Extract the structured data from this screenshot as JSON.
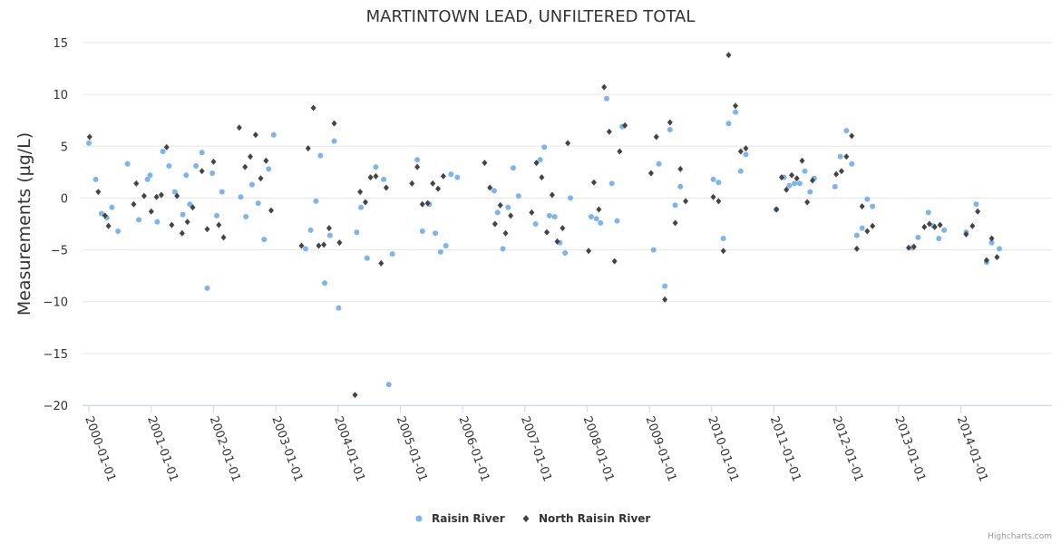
{
  "chart_data": {
    "type": "scatter",
    "title": "MARTINTOWN LEAD, UNFILTERED TOTAL",
    "xlabel": "",
    "ylabel": "Measurements (µg/L)",
    "ylim": [
      -20,
      15
    ],
    "yticks": [
      -20,
      -15,
      -10,
      -5,
      0,
      5,
      10,
      15
    ],
    "xlim": [
      "2000-01-01",
      "2014-12-31"
    ],
    "xticks": [
      "2000-01-01",
      "2001-01-01",
      "2002-01-01",
      "2003-01-01",
      "2004-01-01",
      "2005-01-01",
      "2006-01-01",
      "2007-01-01",
      "2008-01-01",
      "2009-01-01",
      "2010-01-01",
      "2011-01-01",
      "2012-01-01",
      "2013-01-01",
      "2014-01-01"
    ],
    "grid": true,
    "legend": "bottom-center",
    "credit": "Highcharts.com",
    "series": [
      {
        "name": "Raisin River",
        "color": "#7cb5ec",
        "marker": "circle",
        "points": [
          [
            "2000-01-01",
            5.3
          ],
          [
            "2000-02-10",
            1.8
          ],
          [
            "2000-03-15",
            -1.5
          ],
          [
            "2000-04-15",
            -1.9
          ],
          [
            "2000-05-15",
            -0.9
          ],
          [
            "2000-06-20",
            -3.2
          ],
          [
            "2000-08-15",
            3.3
          ],
          [
            "2000-10-20",
            -2.1
          ],
          [
            "2000-12-10",
            1.8
          ],
          [
            "2000-12-25",
            2.2
          ],
          [
            "2001-02-05",
            -2.3
          ],
          [
            "2001-03-10",
            4.5
          ],
          [
            "2001-04-15",
            3.1
          ],
          [
            "2001-05-20",
            0.6
          ],
          [
            "2001-07-05",
            -1.6
          ],
          [
            "2001-07-25",
            2.2
          ],
          [
            "2001-08-15",
            -0.6
          ],
          [
            "2001-09-20",
            3.1
          ],
          [
            "2001-10-25",
            4.4
          ],
          [
            "2001-11-25",
            -8.7
          ],
          [
            "2001-12-25",
            2.4
          ],
          [
            "2002-01-20",
            -1.7
          ],
          [
            "2002-02-20",
            0.6
          ],
          [
            "2002-06-10",
            0.1
          ],
          [
            "2002-07-10",
            -1.8
          ],
          [
            "2002-08-15",
            1.3
          ],
          [
            "2002-09-20",
            -0.5
          ],
          [
            "2002-10-25",
            -4.0
          ],
          [
            "2002-11-20",
            2.8
          ],
          [
            "2002-12-20",
            6.1
          ],
          [
            "2003-06-25",
            -4.9
          ],
          [
            "2003-07-25",
            -3.1
          ],
          [
            "2003-08-25",
            -0.3
          ],
          [
            "2003-09-20",
            4.1
          ],
          [
            "2003-10-15",
            -8.2
          ],
          [
            "2003-11-15",
            -3.6
          ],
          [
            "2003-12-10",
            5.5
          ],
          [
            "2004-01-05",
            -10.6
          ],
          [
            "2004-04-20",
            -3.3
          ],
          [
            "2004-05-15",
            -0.9
          ],
          [
            "2004-06-20",
            -5.8
          ],
          [
            "2004-08-10",
            3.0
          ],
          [
            "2004-09-25",
            1.8
          ],
          [
            "2004-10-25",
            -18.0
          ],
          [
            "2004-11-15",
            -5.4
          ],
          [
            "2005-04-10",
            3.7
          ],
          [
            "2005-05-10",
            -3.2
          ],
          [
            "2005-06-20",
            -0.6
          ],
          [
            "2005-07-25",
            -3.4
          ],
          [
            "2005-08-25",
            -5.2
          ],
          [
            "2005-09-25",
            -4.6
          ],
          [
            "2005-10-25",
            2.3
          ],
          [
            "2005-12-01",
            2.0
          ],
          [
            "2006-07-05",
            0.7
          ],
          [
            "2006-07-25",
            -1.4
          ],
          [
            "2006-08-25",
            -4.9
          ],
          [
            "2006-09-25",
            -0.9
          ],
          [
            "2006-10-25",
            2.9
          ],
          [
            "2006-11-25",
            0.2
          ],
          [
            "2007-03-05",
            -2.5
          ],
          [
            "2007-04-01",
            3.7
          ],
          [
            "2007-04-25",
            4.9
          ],
          [
            "2007-05-25",
            -1.7
          ],
          [
            "2007-06-25",
            -1.8
          ],
          [
            "2007-07-25",
            -4.3
          ],
          [
            "2007-08-25",
            -5.3
          ],
          [
            "2007-09-25",
            0.0
          ],
          [
            "2008-01-25",
            -1.8
          ],
          [
            "2008-02-25",
            -2.0
          ],
          [
            "2008-03-20",
            -2.4
          ],
          [
            "2008-04-25",
            9.6
          ],
          [
            "2008-05-25",
            1.4
          ],
          [
            "2008-06-25",
            -2.2
          ],
          [
            "2008-07-25",
            6.9
          ],
          [
            "2009-01-25",
            -5.0
          ],
          [
            "2009-02-25",
            3.3
          ],
          [
            "2009-04-01",
            -8.5
          ],
          [
            "2009-05-01",
            6.6
          ],
          [
            "2009-06-01",
            -0.7
          ],
          [
            "2009-07-01",
            1.1
          ],
          [
            "2010-01-10",
            1.8
          ],
          [
            "2010-02-10",
            1.5
          ],
          [
            "2010-03-10",
            -3.9
          ],
          [
            "2010-04-10",
            7.2
          ],
          [
            "2010-05-20",
            8.3
          ],
          [
            "2010-06-20",
            2.6
          ],
          [
            "2010-07-20",
            4.2
          ],
          [
            "2011-01-15",
            -1.1
          ],
          [
            "2011-03-01",
            2.0
          ],
          [
            "2011-04-01",
            1.2
          ],
          [
            "2011-05-01",
            1.4
          ],
          [
            "2011-06-01",
            1.4
          ],
          [
            "2011-07-01",
            2.6
          ],
          [
            "2011-08-01",
            0.6
          ],
          [
            "2011-08-25",
            1.9
          ],
          [
            "2011-12-25",
            1.1
          ],
          [
            "2012-01-25",
            4.0
          ],
          [
            "2012-03-01",
            6.5
          ],
          [
            "2012-04-01",
            3.3
          ],
          [
            "2012-05-01",
            -3.6
          ],
          [
            "2012-06-01",
            -2.9
          ],
          [
            "2012-07-01",
            -0.1
          ],
          [
            "2012-08-01",
            -0.8
          ],
          [
            "2013-03-25",
            -4.8
          ],
          [
            "2013-04-25",
            -3.8
          ],
          [
            "2013-06-25",
            -1.4
          ],
          [
            "2013-07-25",
            -2.7
          ],
          [
            "2013-08-25",
            -3.9
          ],
          [
            "2013-09-25",
            -3.1
          ],
          [
            "2014-02-01",
            -3.3
          ],
          [
            "2014-04-01",
            -0.6
          ],
          [
            "2014-06-01",
            -6.2
          ],
          [
            "2014-07-01",
            -4.3
          ],
          [
            "2014-08-15",
            -4.9
          ]
        ]
      },
      {
        "name": "North Raisin River",
        "color": "#434348",
        "marker": "diamond",
        "points": [
          [
            "2000-01-05",
            5.9
          ],
          [
            "2000-02-25",
            0.6
          ],
          [
            "2000-04-05",
            -1.7
          ],
          [
            "2000-04-25",
            -2.7
          ],
          [
            "2000-09-20",
            -0.6
          ],
          [
            "2000-10-05",
            1.4
          ],
          [
            "2000-11-20",
            0.2
          ],
          [
            "2001-01-01",
            -1.3
          ],
          [
            "2001-02-01",
            0.1
          ],
          [
            "2001-03-01",
            0.3
          ],
          [
            "2001-04-01",
            4.9
          ],
          [
            "2001-05-01",
            -2.6
          ],
          [
            "2001-06-01",
            0.2
          ],
          [
            "2001-07-01",
            -3.4
          ],
          [
            "2001-08-01",
            -2.3
          ],
          [
            "2001-09-01",
            -0.9
          ],
          [
            "2001-10-25",
            2.6
          ],
          [
            "2001-11-25",
            -3.0
          ],
          [
            "2002-01-01",
            3.5
          ],
          [
            "2002-02-01",
            -2.6
          ],
          [
            "2002-03-01",
            -3.8
          ],
          [
            "2002-06-01",
            6.8
          ],
          [
            "2002-07-05",
            3.0
          ],
          [
            "2002-08-05",
            4.0
          ],
          [
            "2002-09-05",
            6.1
          ],
          [
            "2002-10-05",
            1.9
          ],
          [
            "2002-11-05",
            3.6
          ],
          [
            "2002-12-05",
            -1.2
          ],
          [
            "2003-06-01",
            -4.6
          ],
          [
            "2003-07-10",
            4.8
          ],
          [
            "2003-08-10",
            8.7
          ],
          [
            "2003-09-10",
            -4.6
          ],
          [
            "2003-10-10",
            -4.5
          ],
          [
            "2003-11-10",
            -2.9
          ],
          [
            "2003-12-10",
            7.2
          ],
          [
            "2004-01-10",
            -4.3
          ],
          [
            "2004-04-10",
            -19.0
          ],
          [
            "2004-05-10",
            0.6
          ],
          [
            "2004-06-10",
            -0.4
          ],
          [
            "2004-07-10",
            2.0
          ],
          [
            "2004-08-10",
            2.1
          ],
          [
            "2004-09-10",
            -6.3
          ],
          [
            "2004-10-10",
            1.0
          ],
          [
            "2005-03-10",
            1.4
          ],
          [
            "2005-04-10",
            3.0
          ],
          [
            "2005-05-10",
            -0.6
          ],
          [
            "2005-06-10",
            -0.5
          ],
          [
            "2005-07-10",
            1.4
          ],
          [
            "2005-08-10",
            0.9
          ],
          [
            "2005-09-10",
            2.1
          ],
          [
            "2006-05-10",
            3.4
          ],
          [
            "2006-06-10",
            1.0
          ],
          [
            "2006-07-10",
            -2.5
          ],
          [
            "2006-08-10",
            -0.7
          ],
          [
            "2006-09-10",
            -3.4
          ],
          [
            "2006-10-10",
            -1.7
          ],
          [
            "2007-02-10",
            -1.4
          ],
          [
            "2007-03-10",
            3.4
          ],
          [
            "2007-04-10",
            2.0
          ],
          [
            "2007-05-10",
            -3.3
          ],
          [
            "2007-06-10",
            0.3
          ],
          [
            "2007-07-10",
            -4.2
          ],
          [
            "2007-08-10",
            -2.9
          ],
          [
            "2007-09-10",
            5.3
          ],
          [
            "2008-01-10",
            -5.1
          ],
          [
            "2008-02-10",
            1.5
          ],
          [
            "2008-03-10",
            -1.1
          ],
          [
            "2008-04-10",
            10.7
          ],
          [
            "2008-05-10",
            6.4
          ],
          [
            "2008-06-10",
            -6.1
          ],
          [
            "2008-07-10",
            4.5
          ],
          [
            "2008-08-10",
            7.0
          ],
          [
            "2009-01-10",
            2.4
          ],
          [
            "2009-02-10",
            5.9
          ],
          [
            "2009-04-01",
            -9.8
          ],
          [
            "2009-05-01",
            7.3
          ],
          [
            "2009-06-01",
            -2.4
          ],
          [
            "2009-07-01",
            2.8
          ],
          [
            "2009-08-01",
            -0.3
          ],
          [
            "2010-01-10",
            0.1
          ],
          [
            "2010-02-10",
            -0.3
          ],
          [
            "2010-03-10",
            -5.1
          ],
          [
            "2010-04-10",
            13.8
          ],
          [
            "2010-05-20",
            8.9
          ],
          [
            "2010-06-20",
            4.5
          ],
          [
            "2010-07-20",
            4.8
          ],
          [
            "2011-01-15",
            -1.1
          ],
          [
            "2011-02-15",
            2.0
          ],
          [
            "2011-03-15",
            0.8
          ],
          [
            "2011-04-15",
            2.2
          ],
          [
            "2011-05-15",
            1.9
          ],
          [
            "2011-06-15",
            3.6
          ],
          [
            "2011-07-15",
            -0.4
          ],
          [
            "2011-08-15",
            1.7
          ],
          [
            "2012-01-01",
            2.3
          ],
          [
            "2012-02-01",
            2.6
          ],
          [
            "2012-03-01",
            4.0
          ],
          [
            "2012-04-01",
            6.0
          ],
          [
            "2012-05-01",
            -4.9
          ],
          [
            "2012-06-01",
            -0.8
          ],
          [
            "2012-07-01",
            -3.2
          ],
          [
            "2012-08-01",
            -2.7
          ],
          [
            "2013-03-01",
            -4.8
          ],
          [
            "2013-04-01",
            -4.7
          ],
          [
            "2013-06-01",
            -2.8
          ],
          [
            "2013-07-01",
            -2.5
          ],
          [
            "2013-08-01",
            -2.8
          ],
          [
            "2013-09-01",
            -2.6
          ],
          [
            "2014-02-01",
            -3.5
          ],
          [
            "2014-03-10",
            -2.7
          ],
          [
            "2014-04-10",
            -1.3
          ],
          [
            "2014-06-01",
            -6.0
          ],
          [
            "2014-07-01",
            -3.9
          ],
          [
            "2014-08-01",
            -5.7
          ]
        ]
      }
    ]
  }
}
